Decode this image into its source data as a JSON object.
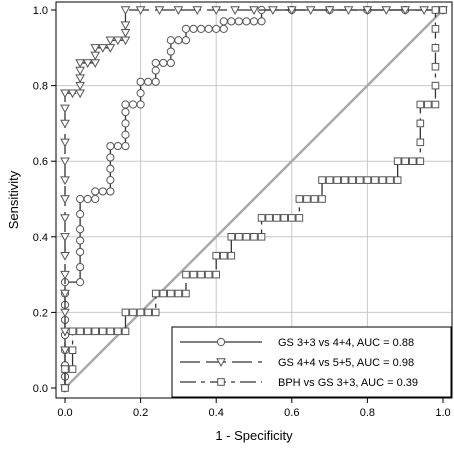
{
  "chart_data": {
    "type": "line",
    "xlabel": "1 - Specificity",
    "ylabel": "Sensitivity",
    "xlim": [
      0,
      1
    ],
    "ylim": [
      0,
      1
    ],
    "xticks": [
      "0.0",
      "0.2",
      "0.4",
      "0.6",
      "0.8",
      "1.0"
    ],
    "yticks": [
      "0.0",
      "0.2",
      "0.4",
      "0.6",
      "0.8",
      "1.0"
    ],
    "grid": true,
    "legend_position": "bottom-right",
    "diagonal_reference": true,
    "series": [
      {
        "name": "GS 3+3 vs 4+4,  AUC = 0.88",
        "marker": "circle",
        "dash": "solid",
        "points": [
          [
            0,
            0
          ],
          [
            0,
            0.03
          ],
          [
            0,
            0.06
          ],
          [
            0,
            0.1
          ],
          [
            0,
            0.14
          ],
          [
            0,
            0.18
          ],
          [
            0,
            0.22
          ],
          [
            0,
            0.25
          ],
          [
            0,
            0.28
          ],
          [
            0.04,
            0.28
          ],
          [
            0.04,
            0.32
          ],
          [
            0.04,
            0.36
          ],
          [
            0.04,
            0.39
          ],
          [
            0.04,
            0.42
          ],
          [
            0.04,
            0.46
          ],
          [
            0.04,
            0.5
          ],
          [
            0.06,
            0.5
          ],
          [
            0.08,
            0.5
          ],
          [
            0.08,
            0.52
          ],
          [
            0.1,
            0.52
          ],
          [
            0.12,
            0.52
          ],
          [
            0.12,
            0.55
          ],
          [
            0.12,
            0.58
          ],
          [
            0.12,
            0.61
          ],
          [
            0.12,
            0.64
          ],
          [
            0.14,
            0.64
          ],
          [
            0.16,
            0.64
          ],
          [
            0.16,
            0.67
          ],
          [
            0.16,
            0.7
          ],
          [
            0.16,
            0.73
          ],
          [
            0.16,
            0.75
          ],
          [
            0.18,
            0.75
          ],
          [
            0.2,
            0.75
          ],
          [
            0.2,
            0.78
          ],
          [
            0.2,
            0.81
          ],
          [
            0.22,
            0.81
          ],
          [
            0.24,
            0.81
          ],
          [
            0.24,
            0.84
          ],
          [
            0.24,
            0.86
          ],
          [
            0.26,
            0.86
          ],
          [
            0.28,
            0.86
          ],
          [
            0.28,
            0.89
          ],
          [
            0.28,
            0.92
          ],
          [
            0.3,
            0.92
          ],
          [
            0.32,
            0.92
          ],
          [
            0.32,
            0.95
          ],
          [
            0.34,
            0.95
          ],
          [
            0.36,
            0.95
          ],
          [
            0.38,
            0.95
          ],
          [
            0.4,
            0.95
          ],
          [
            0.42,
            0.95
          ],
          [
            0.42,
            0.97
          ],
          [
            0.44,
            0.97
          ],
          [
            0.46,
            0.97
          ],
          [
            0.48,
            0.97
          ],
          [
            0.5,
            0.97
          ],
          [
            0.52,
            0.97
          ],
          [
            0.52,
            1.0
          ],
          [
            0.6,
            1.0
          ],
          [
            0.7,
            1.0
          ],
          [
            0.8,
            1.0
          ],
          [
            0.9,
            1.0
          ],
          [
            1.0,
            1.0
          ]
        ]
      },
      {
        "name": "GS 4+4 vs 5+5,  AUC = 0.98",
        "marker": "triangle-down",
        "dash": "long-dash",
        "points": [
          [
            0,
            0
          ],
          [
            0,
            0.05
          ],
          [
            0,
            0.1
          ],
          [
            0,
            0.15
          ],
          [
            0,
            0.2
          ],
          [
            0,
            0.25
          ],
          [
            0,
            0.3
          ],
          [
            0,
            0.35
          ],
          [
            0,
            0.4
          ],
          [
            0,
            0.45
          ],
          [
            0,
            0.5
          ],
          [
            0,
            0.55
          ],
          [
            0,
            0.6
          ],
          [
            0,
            0.65
          ],
          [
            0,
            0.7
          ],
          [
            0,
            0.74
          ],
          [
            0,
            0.78
          ],
          [
            0.02,
            0.78
          ],
          [
            0.04,
            0.78
          ],
          [
            0.04,
            0.8
          ],
          [
            0.04,
            0.82
          ],
          [
            0.04,
            0.84
          ],
          [
            0.04,
            0.86
          ],
          [
            0.06,
            0.86
          ],
          [
            0.08,
            0.86
          ],
          [
            0.08,
            0.88
          ],
          [
            0.08,
            0.9
          ],
          [
            0.1,
            0.9
          ],
          [
            0.12,
            0.9
          ],
          [
            0.12,
            0.92
          ],
          [
            0.14,
            0.92
          ],
          [
            0.16,
            0.92
          ],
          [
            0.16,
            0.94
          ],
          [
            0.16,
            0.96
          ],
          [
            0.16,
            1.0
          ],
          [
            0.2,
            1.0
          ],
          [
            0.25,
            1.0
          ],
          [
            0.3,
            1.0
          ],
          [
            0.35,
            1.0
          ],
          [
            0.4,
            1.0
          ],
          [
            0.45,
            1.0
          ],
          [
            0.5,
            1.0
          ],
          [
            0.55,
            1.0
          ],
          [
            0.6,
            1.0
          ],
          [
            0.65,
            1.0
          ],
          [
            0.7,
            1.0
          ],
          [
            0.75,
            1.0
          ],
          [
            0.8,
            1.0
          ],
          [
            0.85,
            1.0
          ],
          [
            0.9,
            1.0
          ],
          [
            0.95,
            1.0
          ],
          [
            1.0,
            1.0
          ]
        ]
      },
      {
        "name": "BPH vs GS 3+3,  AUC = 0.39",
        "marker": "square",
        "dash": "dash-dot",
        "points": [
          [
            0,
            0
          ],
          [
            0,
            0.05
          ],
          [
            0.02,
            0.05
          ],
          [
            0.02,
            0.1
          ],
          [
            0.02,
            0.15
          ],
          [
            0.04,
            0.15
          ],
          [
            0.06,
            0.15
          ],
          [
            0.08,
            0.15
          ],
          [
            0.1,
            0.15
          ],
          [
            0.12,
            0.15
          ],
          [
            0.14,
            0.15
          ],
          [
            0.16,
            0.15
          ],
          [
            0.16,
            0.2
          ],
          [
            0.18,
            0.2
          ],
          [
            0.2,
            0.2
          ],
          [
            0.22,
            0.2
          ],
          [
            0.24,
            0.2
          ],
          [
            0.24,
            0.25
          ],
          [
            0.26,
            0.25
          ],
          [
            0.28,
            0.25
          ],
          [
            0.3,
            0.25
          ],
          [
            0.32,
            0.25
          ],
          [
            0.32,
            0.3
          ],
          [
            0.34,
            0.3
          ],
          [
            0.36,
            0.3
          ],
          [
            0.38,
            0.3
          ],
          [
            0.4,
            0.3
          ],
          [
            0.4,
            0.35
          ],
          [
            0.42,
            0.35
          ],
          [
            0.44,
            0.35
          ],
          [
            0.44,
            0.4
          ],
          [
            0.46,
            0.4
          ],
          [
            0.48,
            0.4
          ],
          [
            0.5,
            0.4
          ],
          [
            0.52,
            0.4
          ],
          [
            0.52,
            0.45
          ],
          [
            0.54,
            0.45
          ],
          [
            0.56,
            0.45
          ],
          [
            0.58,
            0.45
          ],
          [
            0.6,
            0.45
          ],
          [
            0.62,
            0.45
          ],
          [
            0.62,
            0.5
          ],
          [
            0.64,
            0.5
          ],
          [
            0.66,
            0.5
          ],
          [
            0.68,
            0.5
          ],
          [
            0.68,
            0.55
          ],
          [
            0.7,
            0.55
          ],
          [
            0.72,
            0.55
          ],
          [
            0.74,
            0.55
          ],
          [
            0.76,
            0.55
          ],
          [
            0.78,
            0.55
          ],
          [
            0.8,
            0.55
          ],
          [
            0.82,
            0.55
          ],
          [
            0.84,
            0.55
          ],
          [
            0.86,
            0.55
          ],
          [
            0.88,
            0.55
          ],
          [
            0.88,
            0.6
          ],
          [
            0.9,
            0.6
          ],
          [
            0.92,
            0.6
          ],
          [
            0.94,
            0.6
          ],
          [
            0.94,
            0.65
          ],
          [
            0.94,
            0.7
          ],
          [
            0.94,
            0.75
          ],
          [
            0.96,
            0.75
          ],
          [
            0.98,
            0.75
          ],
          [
            0.98,
            0.8
          ],
          [
            0.98,
            0.85
          ],
          [
            0.98,
            0.9
          ],
          [
            0.98,
            0.95
          ],
          [
            0.98,
            1.0
          ],
          [
            1.0,
            1.0
          ]
        ]
      }
    ]
  }
}
